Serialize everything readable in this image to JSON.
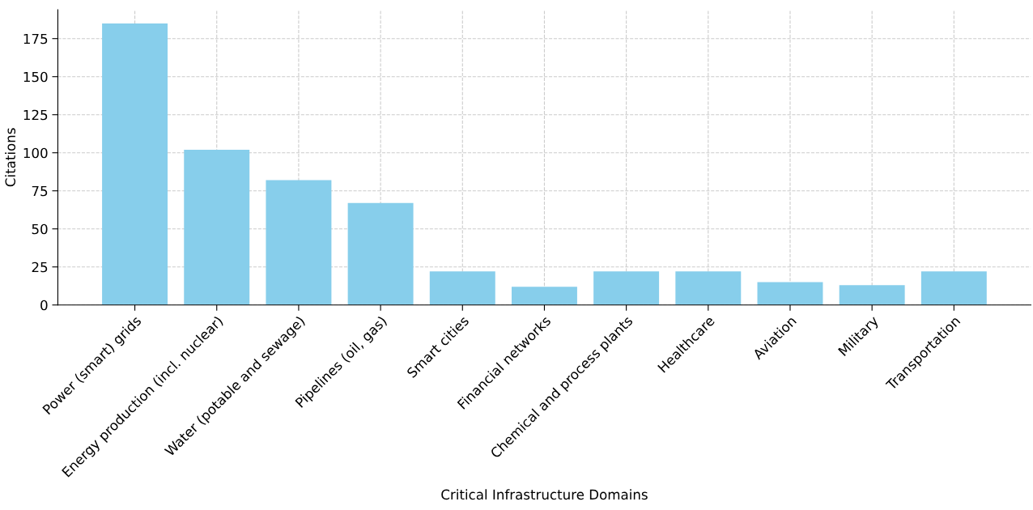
{
  "chart_data": {
    "type": "bar",
    "xlabel": "Critical Infrastructure Domains",
    "ylabel": "Citations",
    "categories": [
      "Power (smart) grids",
      "Energy production (incl. nuclear)",
      "Water (potable and sewage)",
      "Pipelines (oil, gas)",
      "Smart cities",
      "Financial networks",
      "Chemical and process plants",
      "Healthcare",
      "Aviation",
      "Military",
      "Transportation"
    ],
    "values": [
      185,
      102,
      82,
      67,
      22,
      12,
      22,
      22,
      15,
      13,
      22
    ],
    "color": "#87ceeb",
    "ylim": [
      0,
      194
    ],
    "yticks": [
      0,
      25,
      50,
      75,
      100,
      125,
      150,
      175
    ],
    "grid": true
  }
}
